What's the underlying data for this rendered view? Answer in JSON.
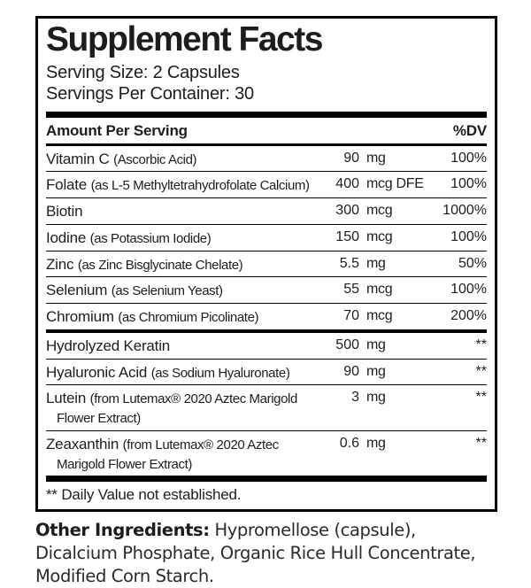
{
  "label": {
    "title": "Supplement Facts",
    "serving_size": "Serving Size: 2 Capsules",
    "servings_per_container": "Servings Per Container: 30",
    "column_headers": {
      "amount": "Amount Per Serving",
      "dv": "%DV"
    },
    "footnote": "** Daily Value not established."
  },
  "rows": [
    {
      "main": "Vitamin C ",
      "detail": "(Ascorbic Acid)",
      "amount": "90",
      "unit": "mg",
      "dv": "100%"
    },
    {
      "main": "Folate ",
      "detail": "(as L-5 Methyltetrahydrofolate Calcium)",
      "amount": "400",
      "unit": "mcg DFE",
      "dv": "100%"
    },
    {
      "main": "Biotin",
      "detail": "",
      "amount": "300",
      "unit": "mcg",
      "dv": "1000%"
    },
    {
      "main": "Iodine ",
      "detail": "(as Potassium Iodide)",
      "amount": "150",
      "unit": "mcg",
      "dv": "100%"
    },
    {
      "main": "Zinc ",
      "detail": "(as Zinc Bisglycinate Chelate)",
      "amount": "5.5",
      "unit": "mg",
      "dv": "50%"
    },
    {
      "main": "Selenium ",
      "detail": "(as Selenium Yeast)",
      "amount": "55",
      "unit": "mcg",
      "dv": "100%"
    },
    {
      "main": "Chromium ",
      "detail": "(as Chromium Picolinate)",
      "amount": "70",
      "unit": "mcg",
      "dv": "200%"
    },
    {
      "main": "Hydrolyzed Keratin",
      "detail": "",
      "amount": "500",
      "unit": "mg",
      "dv": "**"
    },
    {
      "main": "Hyaluronic Acid ",
      "detail": "(as Sodium Hyaluronate)",
      "amount": "90",
      "unit": "mg",
      "dv": "**"
    },
    {
      "main": "Lutein ",
      "detail": "(from Lutemax® 2020 Aztec Marigold Flower Extract)",
      "amount": "3",
      "unit": "mg",
      "dv": "**"
    },
    {
      "main": "Zeaxanthin ",
      "detail": "(from Lutemax® 2020 Aztec Marigold Flower Extract)",
      "amount": "0.6",
      "unit": "mg",
      "dv": "**"
    }
  ],
  "other_ingredients": {
    "label": "Other Ingredients:",
    "text": " Hypromellose (capsule), Dicalcium Phosphate, Organic Rice Hull Concentrate, Modified Corn Starch."
  },
  "colors": {
    "ink": "#1d1d1b",
    "background": "#ffffff"
  }
}
